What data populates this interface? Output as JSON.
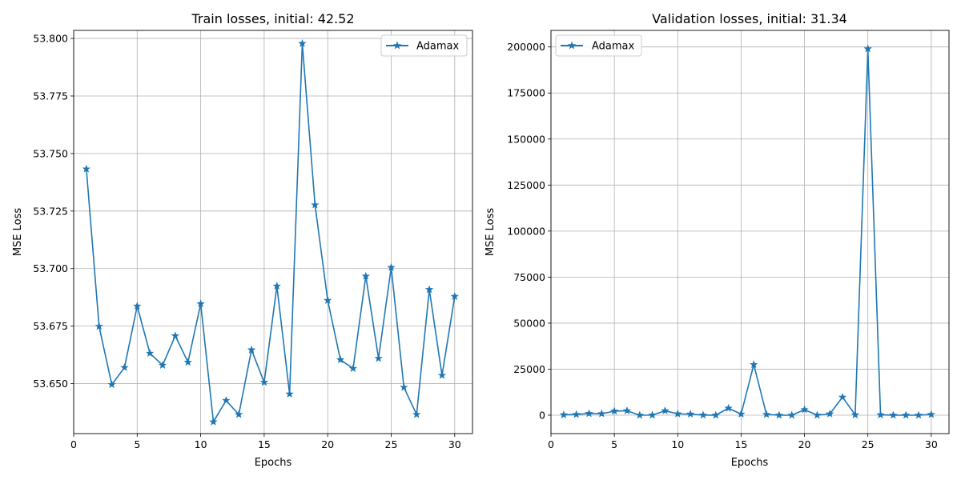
{
  "chart_data": [
    {
      "type": "line",
      "title": "Train losses, initial: 42.52",
      "xlabel": "Epochs",
      "ylabel": "MSE Loss",
      "xlim": [
        0,
        31.4
      ],
      "ylim": [
        53.6283,
        53.8035
      ],
      "xticks": [
        0,
        5,
        10,
        15,
        20,
        25,
        30
      ],
      "yticks": [
        53.65,
        53.675,
        53.7,
        53.725,
        53.75,
        53.775,
        53.8
      ],
      "ytick_labels": [
        "53.650",
        "53.675",
        "53.700",
        "53.725",
        "53.750",
        "53.775",
        "53.800"
      ],
      "grid": true,
      "legend_position": "top-right",
      "color": "#1f77b4",
      "marker": "star",
      "series": [
        {
          "name": "Adamax",
          "x": [
            1,
            2,
            3,
            4,
            5,
            6,
            7,
            8,
            9,
            10,
            11,
            12,
            13,
            14,
            15,
            16,
            17,
            18,
            19,
            20,
            21,
            22,
            23,
            24,
            25,
            26,
            27,
            28,
            29,
            30
          ],
          "values": [
            53.7433,
            53.6749,
            53.6496,
            53.657,
            53.6837,
            53.6632,
            53.658,
            53.6708,
            53.6593,
            53.6847,
            53.6334,
            53.6427,
            53.6366,
            53.6647,
            53.6506,
            53.6924,
            53.6455,
            53.7978,
            53.7277,
            53.6862,
            53.6604,
            53.6566,
            53.6967,
            53.661,
            53.7005,
            53.6484,
            53.6366,
            53.6909,
            53.6536,
            53.6879
          ]
        }
      ]
    },
    {
      "type": "line",
      "title": "Validation losses, initial: 31.34",
      "xlabel": "Epochs",
      "ylabel": "MSE Loss",
      "xlim": [
        0,
        31.4
      ],
      "ylim": [
        -10000,
        209000
      ],
      "xticks": [
        0,
        5,
        10,
        15,
        20,
        25,
        30
      ],
      "yticks": [
        0,
        25000,
        50000,
        75000,
        100000,
        125000,
        150000,
        175000,
        200000
      ],
      "ytick_labels": [
        "0",
        "25000",
        "50000",
        "75000",
        "100000",
        "125000",
        "150000",
        "175000",
        "200000"
      ],
      "grid": true,
      "legend_position": "top-left",
      "color": "#1f77b4",
      "marker": "star",
      "series": [
        {
          "name": "Adamax",
          "x": [
            1,
            2,
            3,
            4,
            5,
            6,
            7,
            8,
            9,
            10,
            11,
            12,
            13,
            14,
            15,
            16,
            17,
            18,
            19,
            20,
            21,
            22,
            23,
            24,
            25,
            26,
            27,
            28,
            29,
            30
          ],
          "values": [
            200,
            400,
            900,
            800,
            2200,
            2400,
            0,
            50,
            2400,
            700,
            600,
            50,
            0,
            3800,
            600,
            27500,
            400,
            0,
            0,
            3000,
            0,
            700,
            9800,
            200,
            199000,
            200,
            0,
            0,
            0,
            400
          ]
        }
      ]
    }
  ]
}
